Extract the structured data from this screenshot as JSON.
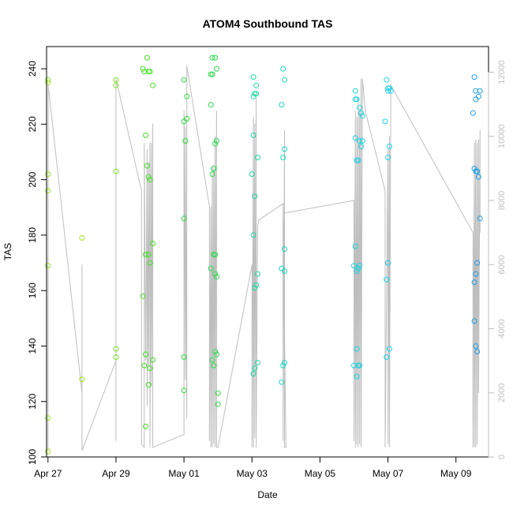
{
  "chart_data": {
    "type": "scatter",
    "title": "ATOM4 Southbound TAS",
    "xlabel": "Date",
    "ylabel": "TAS",
    "xlim": [
      "2014-04-26T23:00",
      "2014-05-09T23:00"
    ],
    "ylim": [
      100,
      248
    ],
    "y2lim": [
      0,
      12800
    ],
    "x_ticks": [
      {
        "value": "2014-04-27T00:00",
        "label": "Apr 27"
      },
      {
        "value": "2014-04-29T00:00",
        "label": "Apr 29"
      },
      {
        "value": "2014-05-01T00:00",
        "label": "May 01"
      },
      {
        "value": "2014-05-03T00:00",
        "label": "May 03"
      },
      {
        "value": "2014-05-05T00:00",
        "label": "May 05"
      },
      {
        "value": "2014-05-07T00:00",
        "label": "May 07"
      },
      {
        "value": "2014-05-09T00:00",
        "label": "May 09"
      }
    ],
    "y_ticks": [
      100,
      120,
      140,
      160,
      180,
      200,
      220,
      240
    ],
    "y2_ticks": [
      0,
      2000,
      4000,
      6000,
      8000,
      10000,
      12000
    ],
    "y2_color": "#bebebe",
    "grid": false,
    "legend": "none",
    "series": [
      {
        "color": "#9ee81b",
        "points": [
          [
            "2014-04-27T00:00",
            236
          ],
          [
            "2014-04-27T00:03",
            235
          ],
          [
            "2014-04-27T00:00",
            202
          ],
          [
            "2014-04-27T00:00",
            196
          ],
          [
            "2014-04-27T00:00",
            169
          ],
          [
            "2014-04-27T00:00",
            114
          ],
          [
            "2014-04-27T00:00",
            102
          ],
          [
            "2014-04-28T00:00",
            179
          ],
          [
            "2014-04-28T00:00",
            128
          ]
        ]
      },
      {
        "color": "#7be51e",
        "points": [
          [
            "2014-04-29T00:00",
            236
          ],
          [
            "2014-04-29T00:00",
            234
          ],
          [
            "2014-04-29T00:00",
            203
          ],
          [
            "2014-04-29T00:00",
            139
          ],
          [
            "2014-04-29T00:00",
            136
          ]
        ]
      },
      {
        "color": "#45e024",
        "points": [
          [
            "2014-04-29T19:00",
            240
          ],
          [
            "2014-04-29T20:00",
            239
          ],
          [
            "2014-04-29T22:00",
            244
          ],
          [
            "2014-04-29T23:00",
            239
          ],
          [
            "2014-04-30T00:00",
            239
          ],
          [
            "2014-04-30T02:00",
            234
          ],
          [
            "2014-04-29T21:00",
            216
          ],
          [
            "2014-04-29T22:00",
            205
          ],
          [
            "2014-04-29T23:00",
            201
          ],
          [
            "2014-04-30T00:00",
            200
          ],
          [
            "2014-04-30T02:00",
            177
          ],
          [
            "2014-04-29T21:00",
            173
          ],
          [
            "2014-04-29T23:00",
            173
          ],
          [
            "2014-04-30T00:00",
            170
          ],
          [
            "2014-04-29T19:00",
            158
          ],
          [
            "2014-04-29T21:00",
            137
          ],
          [
            "2014-04-30T02:00",
            135
          ],
          [
            "2014-04-29T20:00",
            133
          ],
          [
            "2014-04-30T00:00",
            132
          ],
          [
            "2014-04-29T23:00",
            126
          ],
          [
            "2014-04-29T21:00",
            111
          ]
        ]
      },
      {
        "color": "#2fdd3a",
        "points": [
          [
            "2014-05-01T00:00",
            236
          ],
          [
            "2014-05-01T02:00",
            230
          ],
          [
            "2014-05-01T02:00",
            222
          ],
          [
            "2014-05-01T00:00",
            221
          ],
          [
            "2014-05-01T01:00",
            214
          ],
          [
            "2014-05-01T00:00",
            186
          ],
          [
            "2014-05-01T00:00",
            136
          ],
          [
            "2014-05-01T00:00",
            124
          ]
        ]
      },
      {
        "color": "#2bdc4c",
        "points": [
          [
            "2014-05-01T20:00",
            244
          ],
          [
            "2014-05-01T22:00",
            244
          ],
          [
            "2014-05-01T23:00",
            240
          ],
          [
            "2014-05-01T19:00",
            238
          ],
          [
            "2014-05-01T20:00",
            238
          ],
          [
            "2014-05-01T19:00",
            227
          ],
          [
            "2014-05-01T23:00",
            214
          ],
          [
            "2014-05-01T22:00",
            213
          ],
          [
            "2014-05-01T21:00",
            204
          ],
          [
            "2014-05-01T20:00",
            202
          ],
          [
            "2014-05-01T21:00",
            173
          ],
          [
            "2014-05-01T22:00",
            173
          ],
          [
            "2014-05-01T19:00",
            168
          ],
          [
            "2014-05-01T22:00",
            166
          ],
          [
            "2014-05-01T23:00",
            165
          ],
          [
            "2014-05-01T22:00",
            138
          ],
          [
            "2014-05-01T23:00",
            137
          ],
          [
            "2014-05-01T20:00",
            135
          ],
          [
            "2014-05-01T21:00",
            133
          ],
          [
            "2014-05-02T00:00",
            123
          ],
          [
            "2014-05-02T00:00",
            119
          ]
        ]
      },
      {
        "color": "#1adca0",
        "points": [
          [
            "2014-05-03T01:00",
            237
          ],
          [
            "2014-05-03T03:00",
            234
          ],
          [
            "2014-05-03T02:00",
            231
          ],
          [
            "2014-05-03T01:00",
            230
          ],
          [
            "2014-05-03T03:00",
            231
          ],
          [
            "2014-05-03T01:00",
            216
          ],
          [
            "2014-05-03T04:00",
            208
          ],
          [
            "2014-05-03T00:00",
            202
          ],
          [
            "2014-05-03T02:00",
            194
          ],
          [
            "2014-05-03T01:00",
            180
          ],
          [
            "2014-05-03T04:00",
            166
          ],
          [
            "2014-05-03T03:00",
            162
          ],
          [
            "2014-05-03T02:00",
            161
          ],
          [
            "2014-05-03T04:00",
            134
          ],
          [
            "2014-05-03T02:00",
            132
          ],
          [
            "2014-05-03T01:00",
            130
          ]
        ]
      },
      {
        "color": "#16d6c0",
        "points": [
          [
            "2014-05-03T22:00",
            240
          ],
          [
            "2014-05-03T23:00",
            236
          ],
          [
            "2014-05-03T21:00",
            227
          ],
          [
            "2014-05-03T23:00",
            211
          ],
          [
            "2014-05-03T22:00",
            208
          ],
          [
            "2014-05-03T23:00",
            175
          ],
          [
            "2014-05-03T21:00",
            168
          ],
          [
            "2014-05-03T23:00",
            167
          ],
          [
            "2014-05-03T23:00",
            134
          ],
          [
            "2014-05-03T22:00",
            133
          ],
          [
            "2014-05-03T21:00",
            127
          ]
        ]
      },
      {
        "color": "#19d4e0",
        "points": [
          [
            "2014-05-06T01:00",
            232
          ],
          [
            "2014-05-06T02:00",
            229
          ],
          [
            "2014-05-06T01:00",
            229
          ],
          [
            "2014-05-06T04:00",
            226
          ],
          [
            "2014-05-06T05:00",
            224
          ],
          [
            "2014-05-06T06:00",
            223
          ],
          [
            "2014-05-06T01:00",
            215
          ],
          [
            "2014-05-06T04:00",
            214
          ],
          [
            "2014-05-06T06:00",
            214
          ],
          [
            "2014-05-06T05:00",
            212
          ],
          [
            "2014-05-06T02:00",
            207
          ],
          [
            "2014-05-06T03:00",
            207
          ],
          [
            "2014-05-06T01:00",
            176
          ],
          [
            "2014-05-06T00:00",
            169
          ],
          [
            "2014-05-06T03:00",
            168
          ],
          [
            "2014-05-06T04:00",
            169
          ],
          [
            "2014-05-06T02:00",
            167
          ],
          [
            "2014-05-06T02:00",
            139
          ],
          [
            "2014-05-06T00:00",
            133
          ],
          [
            "2014-05-06T03:00",
            133
          ],
          [
            "2014-05-06T04:00",
            133
          ],
          [
            "2014-05-06T02:00",
            129
          ]
        ]
      },
      {
        "color": "#1ad2f0",
        "points": [
          [
            "2014-05-06T23:00",
            236
          ],
          [
            "2014-05-07T00:00",
            233
          ],
          [
            "2014-05-07T01:00",
            233
          ],
          [
            "2014-05-07T00:00",
            232
          ],
          [
            "2014-05-07T02:00",
            232
          ],
          [
            "2014-05-06T22:00",
            221
          ],
          [
            "2014-05-07T01:00",
            212
          ],
          [
            "2014-05-07T00:00",
            208
          ],
          [
            "2014-05-07T00:00",
            170
          ],
          [
            "2014-05-06T23:00",
            164
          ],
          [
            "2014-05-07T01:00",
            139
          ],
          [
            "2014-05-06T23:00",
            136
          ]
        ]
      },
      {
        "color": "#1c9ee6",
        "points": [
          [
            "2014-05-09T13:00",
            237
          ],
          [
            "2014-05-09T14:00",
            232
          ],
          [
            "2014-05-09T17:00",
            232
          ],
          [
            "2014-05-09T16:00",
            230
          ],
          [
            "2014-05-09T14:00",
            229
          ],
          [
            "2014-05-09T12:00",
            224
          ],
          [
            "2014-05-09T13:00",
            204
          ],
          [
            "2014-05-09T14:00",
            203
          ],
          [
            "2014-05-09T15:00",
            203
          ],
          [
            "2014-05-09T16:00",
            201
          ],
          [
            "2014-05-09T17:00",
            186
          ],
          [
            "2014-05-09T15:00",
            170
          ],
          [
            "2014-05-09T14:00",
            166
          ],
          [
            "2014-05-09T13:00",
            163
          ],
          [
            "2014-05-09T13:00",
            149
          ],
          [
            "2014-05-09T14:00",
            140
          ],
          [
            "2014-05-09T15:00",
            138
          ]
        ]
      }
    ],
    "secondary_line": {
      "color": "#bebebe",
      "axis": "right",
      "points": [
        [
          "2014-04-27T00:00",
          400
        ],
        [
          "2014-04-27T00:00",
          6200
        ],
        [
          "2014-04-27T00:05",
          200
        ],
        [
          "2014-04-27T00:10",
          11600
        ],
        [
          "2014-04-28T00:00",
          2000
        ],
        [
          "2014-04-28T00:00",
          6000
        ],
        [
          "2014-04-28T00:00",
          3600
        ],
        [
          "2014-04-28T00:00",
          200
        ],
        [
          "2014-04-29T00:00",
          3000
        ],
        [
          "2014-04-29T00:00",
          500
        ],
        [
          "2014-04-29T00:00",
          11800
        ],
        [
          "2014-04-29T18:00",
          8300
        ],
        [
          "2014-04-29T18:00",
          400
        ],
        [
          "2014-04-29T20:00",
          300
        ],
        [
          "2014-04-29T20:00",
          9800
        ],
        [
          "2014-04-29T21:00",
          3000
        ],
        [
          "2014-04-29T22:00",
          9600
        ],
        [
          "2014-04-29T22:00",
          1600
        ],
        [
          "2014-04-29T23:00",
          9200
        ],
        [
          "2014-04-29T23:00",
          2800
        ],
        [
          "2014-04-30T00:00",
          9800
        ],
        [
          "2014-04-30T00:00",
          300
        ],
        [
          "2014-04-30T01:00",
          9800
        ],
        [
          "2014-04-30T01:00",
          2200
        ],
        [
          "2014-04-30T02:00",
          10400
        ],
        [
          "2014-04-30T02:00",
          300
        ],
        [
          "2014-05-01T00:00",
          700
        ],
        [
          "2014-05-01T00:00",
          10800
        ],
        [
          "2014-05-01T01:00",
          2400
        ],
        [
          "2014-05-01T01:00",
          10300
        ],
        [
          "2014-05-01T02:00",
          1200
        ],
        [
          "2014-05-01T02:00",
          12200
        ],
        [
          "2014-05-01T18:00",
          7800
        ],
        [
          "2014-05-01T18:00",
          500
        ],
        [
          "2014-05-01T19:00",
          7800
        ],
        [
          "2014-05-01T19:00",
          300
        ],
        [
          "2014-05-01T20:00",
          9100
        ],
        [
          "2014-05-01T20:00",
          300
        ],
        [
          "2014-05-01T21:00",
          9000
        ],
        [
          "2014-05-01T21:00",
          400
        ],
        [
          "2014-05-01T22:00",
          10000
        ],
        [
          "2014-05-01T22:00",
          300
        ],
        [
          "2014-05-01T23:00",
          10800
        ],
        [
          "2014-05-01T23:00",
          300
        ],
        [
          "2014-05-02T00:00",
          300
        ],
        [
          "2014-05-03T00:00",
          6000
        ],
        [
          "2014-05-03T00:00",
          300
        ],
        [
          "2014-05-03T01:00",
          10600
        ],
        [
          "2014-05-03T01:00",
          300
        ],
        [
          "2014-05-03T02:00",
          10400
        ],
        [
          "2014-05-03T02:00",
          600
        ],
        [
          "2014-05-03T03:00",
          11200
        ],
        [
          "2014-05-03T03:00",
          300
        ],
        [
          "2014-05-03T04:00",
          7200
        ],
        [
          "2014-05-03T05:00",
          7400
        ],
        [
          "2014-05-03T22:00",
          7900
        ],
        [
          "2014-05-03T22:00",
          500
        ],
        [
          "2014-05-03T23:00",
          10200
        ],
        [
          "2014-05-03T23:00",
          300
        ],
        [
          "2014-05-04T00:00",
          300
        ],
        [
          "2014-05-03T22:00",
          7600
        ],
        [
          "2014-05-06T00:00",
          8000
        ],
        [
          "2014-05-06T00:00",
          500
        ],
        [
          "2014-05-06T01:00",
          10800
        ],
        [
          "2014-05-06T01:00",
          300
        ],
        [
          "2014-05-06T02:00",
          10600
        ],
        [
          "2014-05-06T02:00",
          400
        ],
        [
          "2014-05-06T03:00",
          11200
        ],
        [
          "2014-05-06T03:00",
          300
        ],
        [
          "2014-05-06T04:00",
          10800
        ],
        [
          "2014-05-06T04:00",
          400
        ],
        [
          "2014-05-06T05:00",
          11800
        ],
        [
          "2014-05-06T05:00",
          300
        ],
        [
          "2014-05-06T06:00",
          11800
        ],
        [
          "2014-05-06T08:00",
          10800
        ],
        [
          "2014-05-06T22:00",
          8300
        ],
        [
          "2014-05-06T22:00",
          300
        ],
        [
          "2014-05-07T00:00",
          9600
        ],
        [
          "2014-05-07T00:00",
          400
        ],
        [
          "2014-05-07T01:00",
          10000
        ],
        [
          "2014-05-07T01:00",
          300
        ],
        [
          "2014-05-07T02:00",
          11600
        ],
        [
          "2014-05-09T12:00",
          7000
        ],
        [
          "2014-05-09T12:00",
          300
        ],
        [
          "2014-05-09T13:00",
          9800
        ],
        [
          "2014-05-09T13:00",
          300
        ],
        [
          "2014-05-09T14:00",
          9900
        ],
        [
          "2014-05-09T14:00",
          300
        ],
        [
          "2014-05-09T15:00",
          9800
        ],
        [
          "2014-05-09T15:00",
          400
        ],
        [
          "2014-05-09T16:00",
          9900
        ],
        [
          "2014-05-09T16:00",
          2000
        ],
        [
          "2014-05-09T17:00",
          10200
        ],
        [
          "2014-05-09T17:00",
          7000
        ]
      ]
    }
  }
}
